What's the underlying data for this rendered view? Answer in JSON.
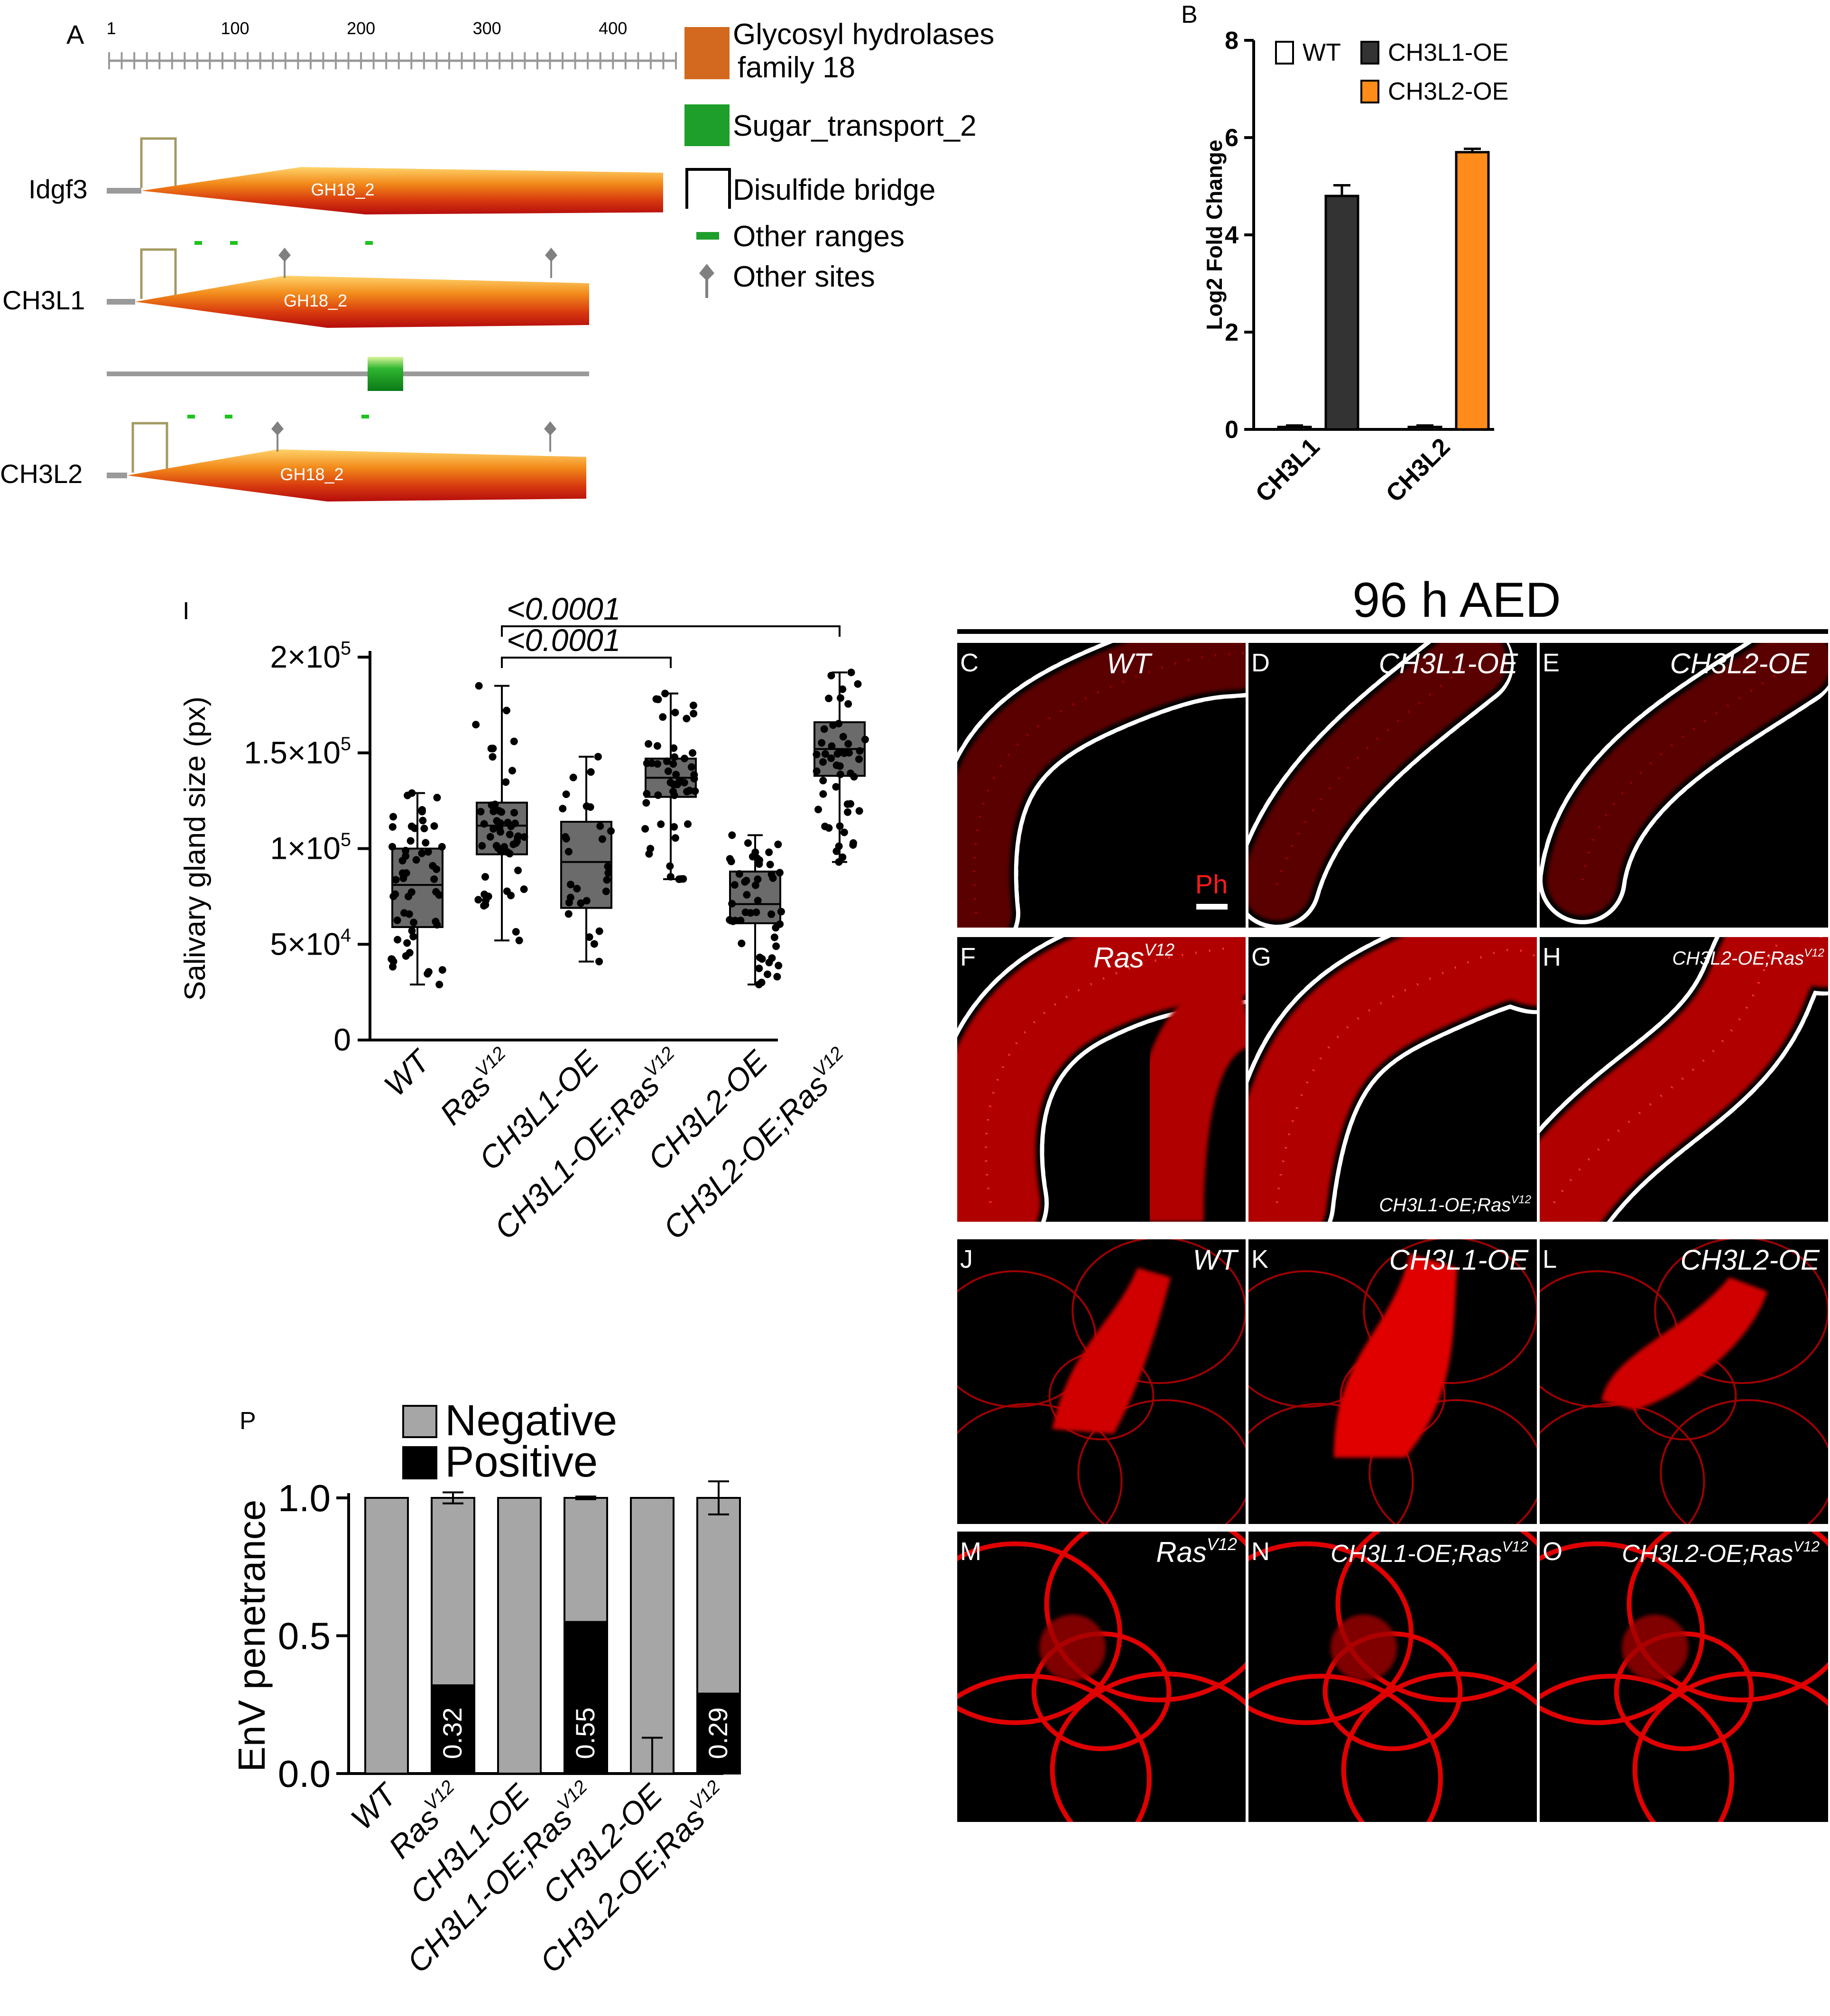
{
  "panel_a": {
    "label": "A",
    "ruler_ticks": [
      "1",
      "100",
      "200",
      "300",
      "400"
    ],
    "rows": [
      {
        "name": "Idgf3",
        "domain": "GH18_2"
      },
      {
        "name": "CH3L1",
        "domain": "GH18_2"
      },
      {
        "name": "CH3L2",
        "domain": "GH18_2"
      }
    ],
    "legend": [
      {
        "kind": "box",
        "color": "#d2691e",
        "text": [
          "Glycosyl hydrolases",
          "family 18"
        ]
      },
      {
        "kind": "box",
        "color": "#1e9e2a",
        "text": [
          "Sugar_transport_2"
        ]
      },
      {
        "kind": "bridge",
        "color": "#000000",
        "text": [
          "Disulfide bridge"
        ]
      },
      {
        "kind": "dash",
        "color": "#1e9e2a",
        "text": [
          "Other ranges"
        ]
      },
      {
        "kind": "pin",
        "color": "#808080",
        "text": [
          "Other sites"
        ]
      }
    ]
  },
  "panel_labels": {
    "b": "B",
    "i": "I",
    "p": "P",
    "c": "C",
    "d": "D",
    "e": "E",
    "f": "F",
    "g": "G",
    "h": "H",
    "j": "J",
    "k": "K",
    "l": "L",
    "m": "M",
    "n": "N",
    "o": "O"
  },
  "micro": {
    "header": "96 h AED",
    "scale_label": "Ph",
    "grid1": [
      {
        "letter": "C",
        "title": "WT"
      },
      {
        "letter": "D",
        "title": "CH3L1-OE"
      },
      {
        "letter": "E",
        "title": "CH3L2-OE"
      },
      {
        "letter": "F",
        "title": "Ras",
        "sup": "V12"
      },
      {
        "letter": "G",
        "title": "CH3L1-OE;Ras",
        "sup": "V12"
      },
      {
        "letter": "H",
        "title": "CH3L2-OE;Ras",
        "sup": "V12"
      }
    ],
    "grid2": [
      {
        "letter": "J",
        "title": "WT"
      },
      {
        "letter": "K",
        "title": "CH3L1-OE"
      },
      {
        "letter": "L",
        "title": "CH3L2-OE"
      },
      {
        "letter": "M",
        "title": "Ras",
        "sup": "V12"
      },
      {
        "letter": "N",
        "title": "CH3L1-OE;Ras",
        "sup": "V12"
      },
      {
        "letter": "O",
        "title": "CH3L2-OE;Ras",
        "sup": "V12"
      }
    ]
  },
  "chart_data": [
    {
      "id": "B",
      "type": "bar",
      "ylabel": "Log2 Fold Change",
      "ylim": [
        0,
        8
      ],
      "yticks": [
        "0",
        "2",
        "4",
        "6",
        "8"
      ],
      "groups": [
        "CH3L1",
        "CH3L2"
      ],
      "series": [
        {
          "name": "WT",
          "color": "#ffffff",
          "values": [
            0.05,
            0.05
          ],
          "err": [
            0.03,
            0.03
          ]
        },
        {
          "name": "CH3L1-OE",
          "color": "#333333",
          "values": [
            4.8,
            null
          ],
          "err": [
            0.22,
            null
          ]
        },
        {
          "name": "CH3L2-OE",
          "color": "#ff8c1a",
          "values": [
            null,
            5.7
          ],
          "err": [
            null,
            0.07
          ]
        }
      ],
      "legend_position": "top"
    },
    {
      "id": "I",
      "type": "box",
      "ylabel": "Salivary gland size (px)",
      "ylim": [
        0,
        200000
      ],
      "yticks": [
        {
          "base": "0",
          "exp": ""
        },
        {
          "base": "5×10",
          "exp": "4"
        },
        {
          "base": "1×10",
          "exp": "5"
        },
        {
          "base": "1.5×10",
          "exp": "5"
        },
        {
          "base": "2×10",
          "exp": "5"
        }
      ],
      "categories": [
        {
          "label": "WT",
          "sup": ""
        },
        {
          "label": "Ras",
          "sup": "V12"
        },
        {
          "label": "CH3L1-OE",
          "sup": ""
        },
        {
          "label": "CH3L1-OE;Ras",
          "sup": "V12"
        },
        {
          "label": "CH3L2-OE",
          "sup": ""
        },
        {
          "label": "CH3L2-OE;Ras",
          "sup": "V12"
        }
      ],
      "boxes": [
        {
          "min": 29000,
          "q1": 59000,
          "median": 81000,
          "q3": 100000,
          "max": 129000,
          "n": 55
        },
        {
          "min": 52000,
          "q1": 97000,
          "median": 112000,
          "q3": 124000,
          "max": 185000,
          "n": 55
        },
        {
          "min": 41000,
          "q1": 69000,
          "median": 93000,
          "q3": 114000,
          "max": 148000,
          "n": 28
        },
        {
          "min": 84000,
          "q1": 127000,
          "median": 137000,
          "q3": 147000,
          "max": 181000,
          "n": 50
        },
        {
          "min": 29000,
          "q1": 61000,
          "median": 71000,
          "q3": 88000,
          "max": 107000,
          "n": 48
        },
        {
          "min": 93000,
          "q1": 138000,
          "median": 152000,
          "q3": 166000,
          "max": 192000,
          "n": 50
        }
      ],
      "comparisons": [
        {
          "from": 1,
          "to": 3,
          "text": "<0.0001"
        },
        {
          "from": 1,
          "to": 5,
          "text": "<0.0001"
        }
      ]
    },
    {
      "id": "P",
      "type": "bar",
      "stacked": true,
      "ylabel": "EnV penetrance",
      "ylim": [
        0,
        1
      ],
      "yticks": [
        "0.0",
        "0.5",
        "1.0"
      ],
      "categories": [
        {
          "label": "WT",
          "sup": ""
        },
        {
          "label": "Ras",
          "sup": "V12"
        },
        {
          "label": "CH3L1-OE",
          "sup": ""
        },
        {
          "label": "CH3L1-OE;Ras",
          "sup": "V12"
        },
        {
          "label": "CH3L2-OE",
          "sup": ""
        },
        {
          "label": "CH3L2-OE;Ras",
          "sup": "V12"
        }
      ],
      "series": [
        {
          "name": "Negative",
          "color": "#a6a6a6",
          "values": [
            1.0,
            0.68,
            1.0,
            0.45,
            1.0,
            0.71
          ]
        },
        {
          "name": "Positive",
          "color": "#000000",
          "values": [
            0,
            0.32,
            0,
            0.55,
            0,
            0.29
          ]
        }
      ],
      "data_labels": [
        "",
        "0.32",
        "",
        "0.55",
        "",
        "0.29"
      ],
      "err": [
        null,
        0.02,
        null,
        0.005,
        0.13,
        0.06
      ],
      "legend_position": "top"
    }
  ]
}
